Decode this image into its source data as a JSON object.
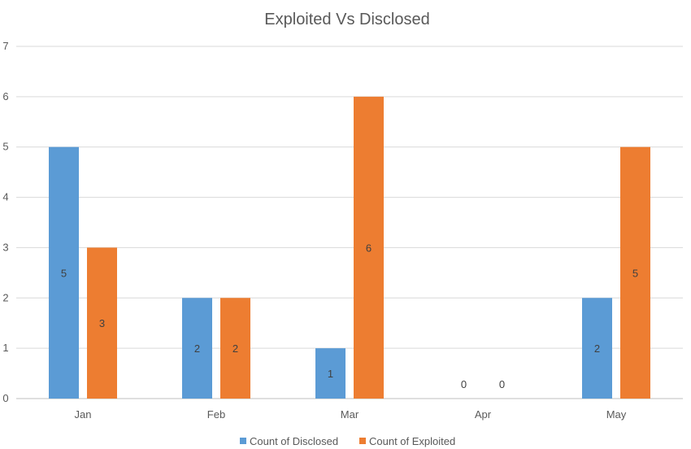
{
  "chart_data": {
    "type": "bar",
    "title": "Exploited Vs Disclosed",
    "categories": [
      "Jan",
      "Feb",
      "Mar",
      "Apr",
      "May"
    ],
    "series": [
      {
        "name": "Count of Disclosed",
        "values": [
          5,
          2,
          1,
          0,
          2
        ],
        "color": "#5B9BD5"
      },
      {
        "name": "Count of Exploited",
        "values": [
          3,
          2,
          6,
          0,
          5
        ],
        "color": "#ED7D31"
      }
    ],
    "ylim": [
      0,
      7
    ],
    "yticks": [
      "0",
      "1",
      "2",
      "3",
      "4",
      "5",
      "6",
      "7"
    ],
    "grid": true,
    "data_labels": true,
    "legend": "bottom",
    "xlabel": "",
    "ylabel": ""
  }
}
